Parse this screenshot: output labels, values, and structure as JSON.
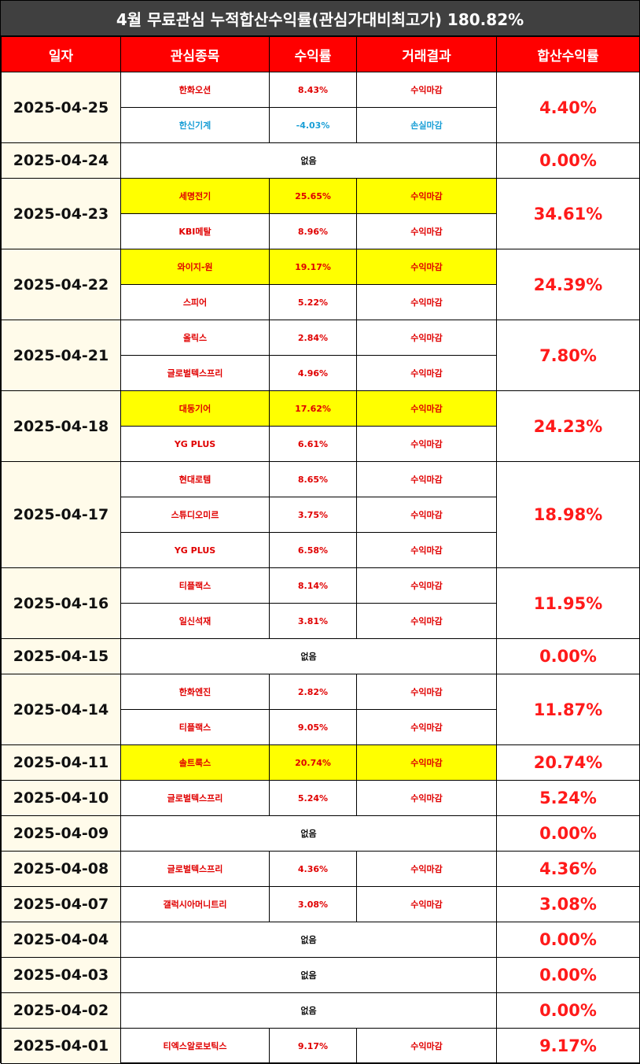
{
  "title": "4월 무료관심 누적합산수익률(관심가대비최고가) 180.82%",
  "headers": [
    "일자",
    "관심종목",
    "수익률",
    "거래결과",
    "합산수익률"
  ],
  "rows": [
    {
      "date": "2025-04-25",
      "total": "4.40%",
      "items": [
        {
          "name": "한화오션",
          "rate": "8.43%",
          "result": "수익마감",
          "highlight": false,
          "loss": false
        },
        {
          "name": "한신기계",
          "rate": "-4.03%",
          "result": "손실마감",
          "highlight": false,
          "loss": true
        }
      ]
    },
    {
      "date": "2025-04-24",
      "total": "0.00%",
      "none": "없음",
      "items": []
    },
    {
      "date": "2025-04-23",
      "total": "34.61%",
      "items": [
        {
          "name": "세명전기",
          "rate": "25.65%",
          "result": "수익마감",
          "highlight": true,
          "loss": false
        },
        {
          "name": "KBI메탈",
          "rate": "8.96%",
          "result": "수익마감",
          "highlight": false,
          "loss": false
        }
      ]
    },
    {
      "date": "2025-04-22",
      "total": "24.39%",
      "items": [
        {
          "name": "와이지-원",
          "rate": "19.17%",
          "result": "수익마감",
          "highlight": true,
          "loss": false
        },
        {
          "name": "스피어",
          "rate": "5.22%",
          "result": "수익마감",
          "highlight": false,
          "loss": false
        }
      ]
    },
    {
      "date": "2025-04-21",
      "total": "7.80%",
      "items": [
        {
          "name": "올릭스",
          "rate": "2.84%",
          "result": "수익마감",
          "highlight": false,
          "loss": false
        },
        {
          "name": "글로벌텍스프리",
          "rate": "4.96%",
          "result": "수익마감",
          "highlight": false,
          "loss": false
        }
      ]
    },
    {
      "date": "2025-04-18",
      "total": "24.23%",
      "items": [
        {
          "name": "대동기어",
          "rate": "17.62%",
          "result": "수익마감",
          "highlight": true,
          "loss": false
        },
        {
          "name": "YG PLUS",
          "rate": "6.61%",
          "result": "수익마감",
          "highlight": false,
          "loss": false
        }
      ]
    },
    {
      "date": "2025-04-17",
      "total": "18.98%",
      "items": [
        {
          "name": "현대로템",
          "rate": "8.65%",
          "result": "수익마감",
          "highlight": false,
          "loss": false
        },
        {
          "name": "스튜디오미르",
          "rate": "3.75%",
          "result": "수익마감",
          "highlight": false,
          "loss": false
        },
        {
          "name": "YG PLUS",
          "rate": "6.58%",
          "result": "수익마감",
          "highlight": false,
          "loss": false
        }
      ]
    },
    {
      "date": "2025-04-16",
      "total": "11.95%",
      "items": [
        {
          "name": "티플랙스",
          "rate": "8.14%",
          "result": "수익마감",
          "highlight": false,
          "loss": false
        },
        {
          "name": "일신석재",
          "rate": "3.81%",
          "result": "수익마감",
          "highlight": false,
          "loss": false
        }
      ]
    },
    {
      "date": "2025-04-15",
      "total": "0.00%",
      "none": "없음",
      "items": []
    },
    {
      "date": "2025-04-14",
      "total": "11.87%",
      "items": [
        {
          "name": "한화엔진",
          "rate": "2.82%",
          "result": "수익마감",
          "highlight": false,
          "loss": false
        },
        {
          "name": "티플랙스",
          "rate": "9.05%",
          "result": "수익마감",
          "highlight": false,
          "loss": false
        }
      ]
    },
    {
      "date": "2025-04-11",
      "total": "20.74%",
      "items": [
        {
          "name": "솔트룩스",
          "rate": "20.74%",
          "result": "수익마감",
          "highlight": true,
          "loss": false
        }
      ]
    },
    {
      "date": "2025-04-10",
      "total": "5.24%",
      "items": [
        {
          "name": "글로벌텍스프리",
          "rate": "5.24%",
          "result": "수익마감",
          "highlight": false,
          "loss": false
        }
      ]
    },
    {
      "date": "2025-04-09",
      "total": "0.00%",
      "none": "없음",
      "items": []
    },
    {
      "date": "2025-04-08",
      "total": "4.36%",
      "items": [
        {
          "name": "글로벌텍스프리",
          "rate": "4.36%",
          "result": "수익마감",
          "highlight": false,
          "loss": false
        }
      ]
    },
    {
      "date": "2025-04-07",
      "total": "3.08%",
      "items": [
        {
          "name": "갤럭시아머니트리",
          "rate": "3.08%",
          "result": "수익마감",
          "highlight": false,
          "loss": false
        }
      ]
    },
    {
      "date": "2025-04-04",
      "total": "0.00%",
      "none": "없음",
      "items": []
    },
    {
      "date": "2025-04-03",
      "total": "0.00%",
      "none": "없음",
      "items": []
    },
    {
      "date": "2025-04-02",
      "total": "0.00%",
      "none": "없음",
      "items": []
    },
    {
      "date": "2025-04-01",
      "total": "9.17%",
      "items": [
        {
          "name": "티엑스알로보틱스",
          "rate": "9.17%",
          "result": "수익마감",
          "highlight": false,
          "loss": false
        }
      ]
    }
  ]
}
